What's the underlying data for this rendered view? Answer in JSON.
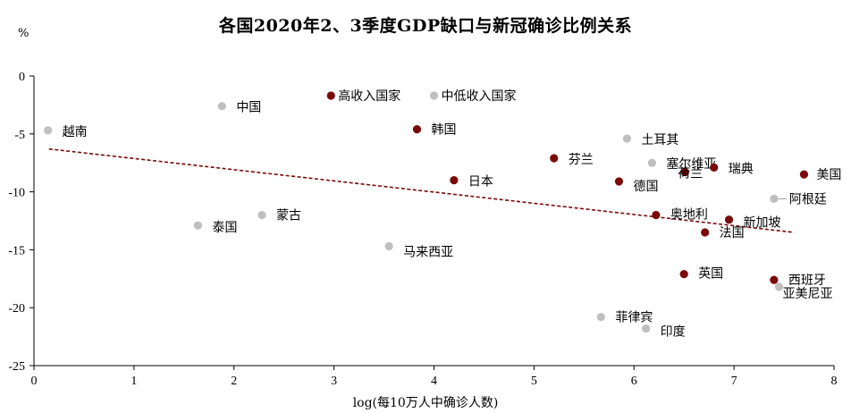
{
  "chart_data": {
    "type": "scatter",
    "title": "各国2020年2、3季度GDP缺口与新冠确诊比例关系",
    "xlabel": "log(每10万人中确诊人数)",
    "ylabel": "%",
    "xlim": [
      0,
      8
    ],
    "ylim": [
      -25,
      0
    ],
    "x_ticks": [
      0,
      1,
      2,
      3,
      4,
      5,
      6,
      7,
      8
    ],
    "y_ticks": [
      0,
      -5,
      -10,
      -15,
      -20,
      -25
    ],
    "colors": {
      "dark": "#7a0a0a",
      "light": "#bfbfbf",
      "trend": "#7a0a0a"
    },
    "points": [
      {
        "label": "高收入国家",
        "x": 2.97,
        "y": -1.7,
        "color": "dark"
      },
      {
        "label": "中低收入国家",
        "x": 4.0,
        "y": -1.7,
        "color": "light"
      },
      {
        "label": "中国",
        "x": 1.88,
        "y": -2.6,
        "color": "light"
      },
      {
        "label": "越南",
        "x": 0.14,
        "y": -4.7,
        "color": "light"
      },
      {
        "label": "韩国",
        "x": 3.83,
        "y": -4.6,
        "color": "dark"
      },
      {
        "label": "土耳其",
        "x": 5.93,
        "y": -5.4,
        "color": "light"
      },
      {
        "label": "芬兰",
        "x": 5.2,
        "y": -7.1,
        "color": "dark"
      },
      {
        "label": "塞尔维亚",
        "x": 6.18,
        "y": -7.5,
        "color": "light"
      },
      {
        "label": "瑞典",
        "x": 6.8,
        "y": -7.9,
        "color": "dark"
      },
      {
        "label": "荷兰",
        "x": 6.51,
        "y": -8.3,
        "color": "dark"
      },
      {
        "label": "美国",
        "x": 7.7,
        "y": -8.5,
        "color": "dark"
      },
      {
        "label": "日本",
        "x": 4.2,
        "y": -9.0,
        "color": "dark"
      },
      {
        "label": "德国",
        "x": 5.85,
        "y": -9.1,
        "color": "dark"
      },
      {
        "label": "阿根廷",
        "x": 7.4,
        "y": -10.6,
        "color": "light"
      },
      {
        "label": "蒙古",
        "x": 2.28,
        "y": -12.0,
        "color": "light"
      },
      {
        "label": "奥地利",
        "x": 6.22,
        "y": -12.0,
        "color": "dark"
      },
      {
        "label": "新加坡",
        "x": 6.95,
        "y": -12.4,
        "color": "dark"
      },
      {
        "label": "泰国",
        "x": 1.64,
        "y": -12.9,
        "color": "light"
      },
      {
        "label": "法国",
        "x": 6.71,
        "y": -13.5,
        "color": "dark"
      },
      {
        "label": "马来西亚",
        "x": 3.55,
        "y": -14.7,
        "color": "light"
      },
      {
        "label": "英国",
        "x": 6.5,
        "y": -17.1,
        "color": "dark"
      },
      {
        "label": "西班牙",
        "x": 7.4,
        "y": -17.6,
        "color": "dark"
      },
      {
        "label": "亚美尼亚",
        "x": 7.45,
        "y": -18.2,
        "color": "light"
      },
      {
        "label": "菲律宾",
        "x": 5.67,
        "y": -20.8,
        "color": "light"
      },
      {
        "label": "印度",
        "x": 6.12,
        "y": -21.8,
        "color": "light"
      }
    ],
    "trendline": {
      "x": [
        0.15,
        7.6
      ],
      "y": [
        -6.3,
        -13.5
      ]
    },
    "grid": false,
    "legend": "none"
  }
}
